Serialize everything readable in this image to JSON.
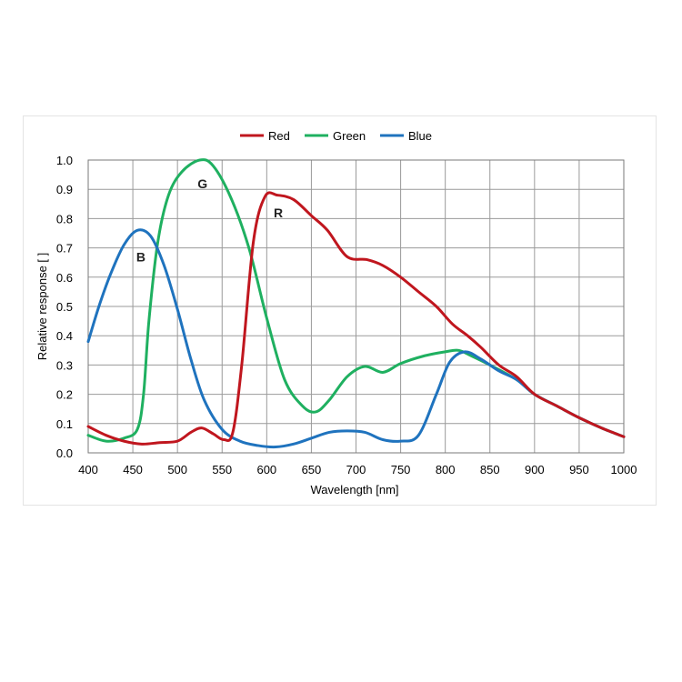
{
  "chart_data": {
    "type": "line",
    "title": "",
    "xlabel": "Wavelength [nm]",
    "ylabel": "Relative response [ ]",
    "xlim": [
      400,
      1000
    ],
    "ylim": [
      0,
      1.0
    ],
    "x_ticks": [
      "400",
      "450",
      "500",
      "550",
      "600",
      "650",
      "700",
      "750",
      "800",
      "850",
      "900",
      "950",
      "1000"
    ],
    "y_ticks": [
      "0.0",
      "0.1",
      "0.2",
      "0.3",
      "0.4",
      "0.5",
      "0.6",
      "0.7",
      "0.8",
      "0.9",
      "1.0"
    ],
    "grid": true,
    "legend_position": "top-center",
    "series": [
      {
        "name": "Red",
        "color": "#c0161e",
        "label": "R",
        "points": [
          [
            400,
            0.09
          ],
          [
            420,
            0.06
          ],
          [
            440,
            0.04
          ],
          [
            460,
            0.03
          ],
          [
            480,
            0.035
          ],
          [
            500,
            0.04
          ],
          [
            515,
            0.07
          ],
          [
            527,
            0.085
          ],
          [
            540,
            0.065
          ],
          [
            552,
            0.045
          ],
          [
            562,
            0.07
          ],
          [
            572,
            0.3
          ],
          [
            585,
            0.72
          ],
          [
            598,
            0.875
          ],
          [
            612,
            0.88
          ],
          [
            630,
            0.865
          ],
          [
            650,
            0.81
          ],
          [
            668,
            0.76
          ],
          [
            690,
            0.67
          ],
          [
            712,
            0.66
          ],
          [
            730,
            0.64
          ],
          [
            750,
            0.6
          ],
          [
            770,
            0.55
          ],
          [
            790,
            0.5
          ],
          [
            808,
            0.44
          ],
          [
            825,
            0.4
          ],
          [
            840,
            0.36
          ],
          [
            860,
            0.3
          ],
          [
            880,
            0.26
          ],
          [
            900,
            0.2
          ],
          [
            925,
            0.16
          ],
          [
            950,
            0.12
          ],
          [
            975,
            0.085
          ],
          [
            1000,
            0.055
          ]
        ]
      },
      {
        "name": "Green",
        "color": "#1fb060",
        "label": "G",
        "points": [
          [
            400,
            0.06
          ],
          [
            420,
            0.04
          ],
          [
            440,
            0.05
          ],
          [
            455,
            0.08
          ],
          [
            462,
            0.2
          ],
          [
            468,
            0.45
          ],
          [
            478,
            0.72
          ],
          [
            490,
            0.88
          ],
          [
            505,
            0.96
          ],
          [
            525,
            1.0
          ],
          [
            540,
            0.98
          ],
          [
            560,
            0.87
          ],
          [
            580,
            0.7
          ],
          [
            600,
            0.46
          ],
          [
            620,
            0.25
          ],
          [
            640,
            0.16
          ],
          [
            655,
            0.14
          ],
          [
            670,
            0.18
          ],
          [
            690,
            0.26
          ],
          [
            710,
            0.295
          ],
          [
            730,
            0.275
          ],
          [
            750,
            0.305
          ],
          [
            775,
            0.33
          ],
          [
            800,
            0.345
          ],
          [
            815,
            0.35
          ],
          [
            830,
            0.33
          ],
          [
            850,
            0.3
          ],
          [
            880,
            0.25
          ],
          [
            900,
            0.2
          ],
          [
            925,
            0.16
          ],
          [
            950,
            0.12
          ],
          [
            975,
            0.085
          ],
          [
            1000,
            0.055
          ]
        ]
      },
      {
        "name": "Blue",
        "color": "#1f73be",
        "label": "B",
        "points": [
          [
            400,
            0.38
          ],
          [
            412,
            0.5
          ],
          [
            425,
            0.61
          ],
          [
            440,
            0.71
          ],
          [
            455,
            0.76
          ],
          [
            470,
            0.74
          ],
          [
            485,
            0.64
          ],
          [
            500,
            0.49
          ],
          [
            515,
            0.32
          ],
          [
            530,
            0.18
          ],
          [
            550,
            0.08
          ],
          [
            570,
            0.04
          ],
          [
            590,
            0.025
          ],
          [
            610,
            0.02
          ],
          [
            630,
            0.03
          ],
          [
            650,
            0.05
          ],
          [
            670,
            0.07
          ],
          [
            690,
            0.075
          ],
          [
            710,
            0.07
          ],
          [
            730,
            0.045
          ],
          [
            750,
            0.04
          ],
          [
            770,
            0.06
          ],
          [
            790,
            0.2
          ],
          [
            805,
            0.31
          ],
          [
            822,
            0.345
          ],
          [
            840,
            0.32
          ],
          [
            860,
            0.28
          ],
          [
            880,
            0.25
          ],
          [
            900,
            0.2
          ],
          [
            925,
            0.16
          ],
          [
            950,
            0.12
          ],
          [
            975,
            0.085
          ],
          [
            1000,
            0.055
          ]
        ]
      }
    ],
    "annotations": [
      {
        "text": "B",
        "x": 459,
        "y": 0.67
      },
      {
        "text": "G",
        "x": 528,
        "y": 0.92
      },
      {
        "text": "R",
        "x": 613,
        "y": 0.82
      }
    ]
  }
}
